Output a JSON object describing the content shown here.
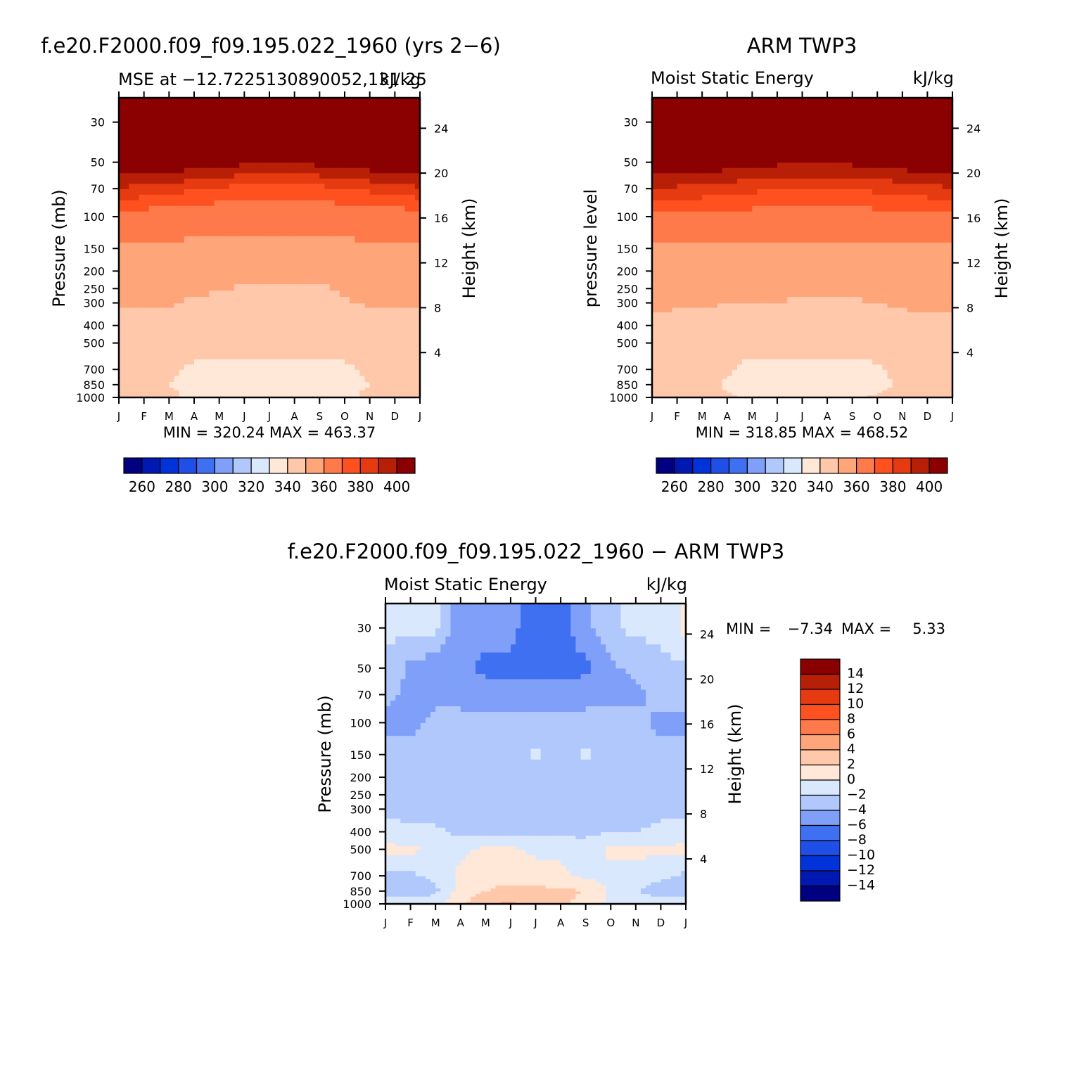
{
  "chart_data": [
    {
      "type": "heatmap",
      "title": "f.e20.F2000.f09_f09.195.022_1960 (yrs 2−6)",
      "subtitle_left": "MSE at −12.7225130890052,131.25",
      "subtitle_right": "kJ/kg",
      "ylabel": "Pressure (mb)",
      "ylabel_right": "Height (km)",
      "x_ticks": [
        "J",
        "F",
        "M",
        "A",
        "M",
        "J",
        "J",
        "A",
        "S",
        "O",
        "N",
        "D",
        "J"
      ],
      "y_ticks": [
        "30",
        "50",
        "70",
        "100",
        "150",
        "200",
        "250",
        "300",
        "400",
        "500",
        "700",
        "850",
        "1000"
      ],
      "y_right_ticks": [
        "24",
        "20",
        "16",
        "12",
        "8",
        "4"
      ],
      "stats": "MIN = 320.24 MAX = 463.37",
      "colorbar_labels": [
        "260",
        "280",
        "300",
        "320",
        "340",
        "360",
        "380",
        "400"
      ],
      "contour_levels": [
        250,
        260,
        270,
        280,
        290,
        300,
        310,
        320,
        330,
        340,
        350,
        360,
        370,
        380,
        390,
        400
      ],
      "y": [
        1000,
        850,
        700,
        500,
        400,
        300,
        200,
        150,
        100,
        70,
        50,
        30
      ],
      "months": [
        "J",
        "F",
        "M",
        "A",
        "M",
        "J",
        "J",
        "A",
        "S",
        "O",
        "N",
        "D",
        "J"
      ],
      "values": [
        [
          335,
          335,
          332,
          328,
          326,
          325,
          325,
          325,
          326,
          328,
          332,
          335,
          335
        ],
        [
          332,
          331,
          330,
          328,
          327,
          327,
          327,
          327,
          327,
          328,
          330,
          332,
          332
        ],
        [
          332,
          331,
          331,
          329,
          329,
          329,
          329,
          329,
          329,
          329,
          331,
          332,
          332
        ],
        [
          332,
          333,
          333,
          332,
          331,
          331,
          331,
          331,
          331,
          332,
          333,
          333,
          332
        ],
        [
          335,
          334,
          334,
          334,
          333,
          333,
          333,
          333,
          333,
          333,
          334,
          335,
          335
        ],
        [
          341,
          341,
          341,
          339,
          339,
          338,
          338,
          338,
          338,
          339,
          341,
          341,
          341
        ],
        [
          345,
          345,
          344,
          343,
          342,
          341,
          341,
          341,
          341,
          343,
          345,
          345,
          345
        ],
        [
          349,
          349,
          349,
          349,
          349,
          349,
          349,
          349,
          349,
          349,
          349,
          349,
          349
        ],
        [
          353,
          353,
          353,
          352,
          351,
          351,
          351,
          351,
          351,
          352,
          353,
          353,
          353
        ],
        [
          378,
          377,
          374,
          371,
          368,
          366,
          366,
          366,
          367,
          369,
          372,
          375,
          378
        ],
        [
          402,
          401,
          399,
          397,
          394,
          392,
          391,
          391,
          393,
          395,
          398,
          400,
          402
        ],
        [
          440,
          440,
          438,
          436,
          434,
          432,
          431,
          431,
          433,
          435,
          437,
          439,
          440
        ]
      ]
    },
    {
      "type": "heatmap",
      "title": "ARM TWP3",
      "subtitle_left": "Moist Static Energy",
      "subtitle_right": "kJ/kg",
      "ylabel": "pressure level",
      "ylabel_right": "Height (km)",
      "x_ticks": [
        "J",
        "F",
        "M",
        "A",
        "M",
        "J",
        "J",
        "A",
        "S",
        "O",
        "N",
        "D",
        "J"
      ],
      "y_ticks": [
        "30",
        "50",
        "70",
        "100",
        "150",
        "200",
        "250",
        "300",
        "400",
        "500",
        "700",
        "850",
        "1000"
      ],
      "y_right_ticks": [
        "24",
        "20",
        "16",
        "12",
        "8",
        "4"
      ],
      "stats": "MIN = 318.85 MAX = 468.52",
      "colorbar_labels": [
        "260",
        "280",
        "300",
        "320",
        "340",
        "360",
        "380",
        "400"
      ],
      "contour_levels": [
        250,
        260,
        270,
        280,
        290,
        300,
        310,
        320,
        330,
        340,
        350,
        360,
        370,
        380,
        390,
        400
      ],
      "y": [
        1000,
        850,
        700,
        500,
        400,
        300,
        200,
        150,
        100,
        70,
        50,
        30
      ],
      "months": [
        "J",
        "F",
        "M",
        "A",
        "M",
        "J",
        "J",
        "A",
        "S",
        "O",
        "N",
        "D",
        "J"
      ],
      "values": [
        [
          336,
          336,
          333,
          331,
          329,
          328,
          328,
          328,
          329,
          331,
          333,
          336,
          336
        ],
        [
          333,
          332,
          332,
          329,
          327,
          327,
          326,
          326,
          327,
          328,
          331,
          333,
          333
        ],
        [
          334,
          333,
          333,
          331,
          328,
          328,
          328,
          328,
          328,
          329,
          332,
          334,
          334
        ],
        [
          334,
          334,
          334,
          333,
          332,
          332,
          332,
          332,
          332,
          333,
          334,
          334,
          334
        ],
        [
          337,
          337,
          337,
          336,
          336,
          335,
          335,
          335,
          335,
          336,
          337,
          337,
          337
        ],
        [
          342,
          341,
          341,
          340,
          340,
          340,
          339,
          339,
          339,
          340,
          341,
          342,
          342
        ],
        [
          346,
          346,
          346,
          345,
          345,
          344,
          344,
          344,
          344,
          345,
          345,
          346,
          346
        ],
        [
          349,
          349,
          349,
          349,
          349,
          349,
          349,
          349,
          349,
          349,
          349,
          349,
          349
        ],
        [
          356,
          356,
          356,
          355,
          355,
          354,
          354,
          354,
          355,
          355,
          356,
          356,
          356
        ],
        [
          379,
          378,
          376,
          374,
          372,
          370,
          369,
          369,
          370,
          372,
          374,
          376,
          379
        ],
        [
          400,
          399,
          398,
          396,
          394,
          392,
          391,
          391,
          392,
          394,
          396,
          398,
          400
        ],
        [
          442,
          442,
          440,
          438,
          436,
          434,
          433,
          433,
          434,
          436,
          438,
          440,
          442
        ]
      ]
    },
    {
      "type": "heatmap",
      "title": "f.e20.F2000.f09_f09.195.022_1960 − ARM TWP3",
      "subtitle_left": "Moist Static Energy",
      "subtitle_right": "kJ/kg",
      "ylabel": "Pressure (mb)",
      "ylabel_right": "Height (km)",
      "x_ticks": [
        "J",
        "F",
        "M",
        "A",
        "M",
        "J",
        "J",
        "A",
        "S",
        "O",
        "N",
        "D",
        "J"
      ],
      "y_ticks": [
        "30",
        "50",
        "70",
        "100",
        "150",
        "200",
        "250",
        "300",
        "400",
        "500",
        "700",
        "850",
        "1000"
      ],
      "y_right_ticks": [
        "24",
        "20",
        "16",
        "12",
        "8",
        "4"
      ],
      "stats_min_label": "MIN =",
      "stats_min": "−7.34",
      "stats_max_label": "MAX =",
      "stats_max": "5.33",
      "colorbar_labels": [
        "14",
        "12",
        "10",
        "8",
        "6",
        "4",
        "2",
        "0",
        "−2",
        "−4",
        "−6",
        "−8",
        "−10",
        "−12",
        "−14"
      ],
      "contour_levels": [
        -14,
        -12,
        -10,
        -8,
        -6,
        -4,
        -2,
        0,
        2,
        4,
        6,
        8,
        10,
        12,
        14
      ],
      "y": [
        1000,
        850,
        700,
        500,
        400,
        300,
        200,
        150,
        100,
        70,
        50,
        30
      ],
      "months": [
        "J",
        "F",
        "M",
        "A",
        "M",
        "J",
        "J",
        "A",
        "S",
        "O",
        "N",
        "D",
        "J"
      ],
      "values": [
        [
          -0.5,
          -0.5,
          -0.5,
          1.5,
          3.5,
          4.5,
          3,
          2.5,
          1,
          -0.5,
          -0.5,
          -0.5,
          -0.5
        ],
        [
          -3,
          -3,
          -2.5,
          1,
          2,
          2.5,
          2.5,
          2.5,
          2,
          -0.5,
          -2,
          -3,
          -3
        ],
        [
          -2.5,
          -2.5,
          -1.5,
          0.5,
          1.5,
          1.5,
          1,
          0.5,
          -0.5,
          -0.5,
          -1,
          -1.5,
          -2.5
        ],
        [
          0.5,
          0.5,
          -0.5,
          -0.5,
          0.5,
          0.5,
          -0.5,
          -0.5,
          -1,
          0.5,
          0.5,
          0.5,
          0.5
        ],
        [
          -1,
          -1.5,
          -1.5,
          -2.5,
          -2.5,
          -2.5,
          -2.5,
          -2.5,
          -2.5,
          -2,
          -2,
          -1.5,
          -1
        ],
        [
          -2.5,
          -3,
          -3,
          -3,
          -3.5,
          -3.5,
          -3.5,
          -3.5,
          -3.5,
          -3,
          -3,
          -2.5,
          -2.5
        ],
        [
          -3,
          -3,
          -3,
          -3,
          -3,
          -3,
          -3,
          -3,
          -3,
          -3,
          -3,
          -3,
          -3
        ],
        [
          -3,
          -3.5,
          -3.5,
          -3.5,
          -3.5,
          -3.5,
          -1.5,
          -3,
          -1.5,
          -3.5,
          -3.5,
          -3.5,
          -3
        ],
        [
          -4.5,
          -4.5,
          -3.5,
          -3.5,
          -3.5,
          -3.5,
          -3.5,
          -3.5,
          -3.5,
          -3.5,
          -3.5,
          -4.5,
          -4.5
        ],
        [
          -3.5,
          -4.5,
          -4.5,
          -4.5,
          -5,
          -5,
          -5,
          -5,
          -4.5,
          -4.5,
          -4.5,
          -3.5,
          -3.5
        ],
        [
          -2.5,
          -4.5,
          -5.5,
          -5.5,
          -6.5,
          -6.5,
          -6.5,
          -7,
          -6.5,
          -4.5,
          -3.5,
          -2.5,
          -2.5
        ],
        [
          -1.5,
          -1.5,
          -1.5,
          -5.5,
          -5.5,
          -5.5,
          -7,
          -7,
          -4.5,
          -2.5,
          -1.5,
          -1.5,
          0.5
        ]
      ]
    }
  ],
  "colors": {
    "msefill": [
      "#000080",
      "#0019b3",
      "#0033d9",
      "#1f4fe6",
      "#3f70f2",
      "#7f9ff9",
      "#b0c8fb",
      "#d9e8fc",
      "#ffe8d8",
      "#ffc8aa",
      "#ffa57a",
      "#ff7a4a",
      "#ff5020",
      "#e63a10",
      "#b81f07",
      "#8b0000"
    ],
    "difffill": [
      "#000080",
      "#0019b3",
      "#0033d9",
      "#1f4fe6",
      "#3f70f2",
      "#7f9ff9",
      "#b0c8fb",
      "#d9e8fc",
      "#ffe8d8",
      "#ffc8aa",
      "#ffa57a",
      "#ff7a4a",
      "#ff5020",
      "#e63a10",
      "#b81f07",
      "#8b0000"
    ]
  }
}
